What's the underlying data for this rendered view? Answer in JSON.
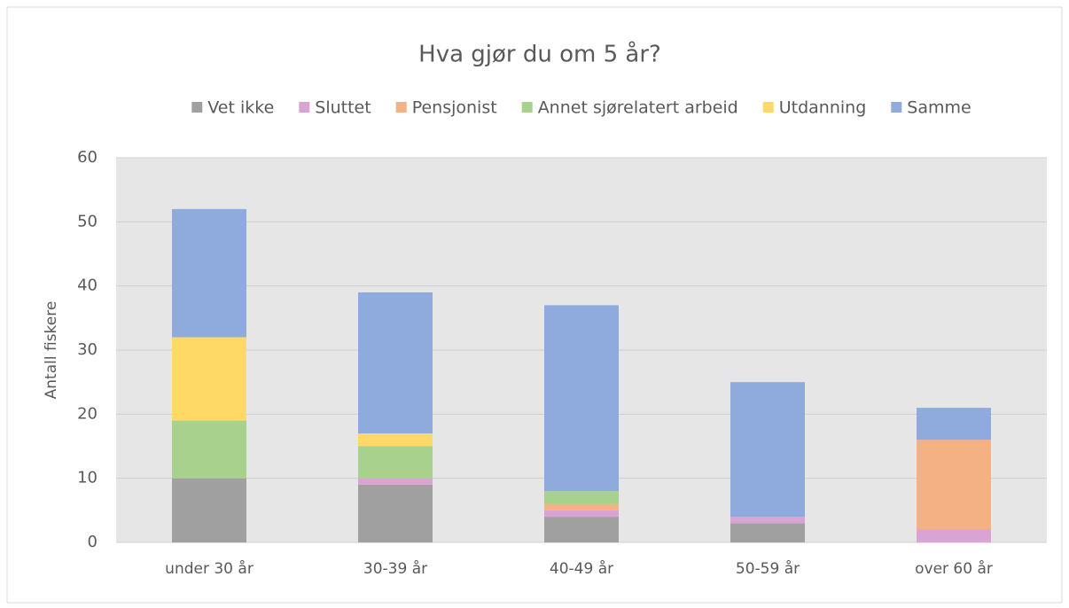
{
  "chart_data": {
    "type": "stacked_bar",
    "title": "Hva gjør du om 5 år?",
    "y_label": "Antall fiskere",
    "categories": [
      "under 30 år",
      "30-39 år",
      "40-49 år",
      "50-59 år",
      "over 60 år"
    ],
    "series": [
      {
        "name": "Vet ikke",
        "color": "#a0a0a0",
        "values": [
          10,
          9,
          4,
          3,
          0
        ]
      },
      {
        "name": "Sluttet",
        "color": "#d9a3d3",
        "values": [
          0,
          1,
          1,
          1,
          2
        ]
      },
      {
        "name": "Pensjonist",
        "color": "#f4b183",
        "values": [
          0,
          0,
          1,
          0,
          14
        ]
      },
      {
        "name": "Annet sjørelatert arbeid",
        "color": "#a9d18e",
        "values": [
          9,
          5,
          2,
          0,
          0
        ]
      },
      {
        "name": "Utdanning",
        "color": "#ffd966",
        "values": [
          13,
          2,
          0,
          0,
          0
        ]
      },
      {
        "name": "Samme",
        "color": "#8faadc",
        "values": [
          20,
          22,
          29,
          21,
          5
        ]
      }
    ],
    "ylim": [
      0,
      60
    ],
    "yticks": [
      0,
      10,
      20,
      30,
      40,
      50,
      60
    ],
    "grid": true,
    "legend": "top"
  }
}
